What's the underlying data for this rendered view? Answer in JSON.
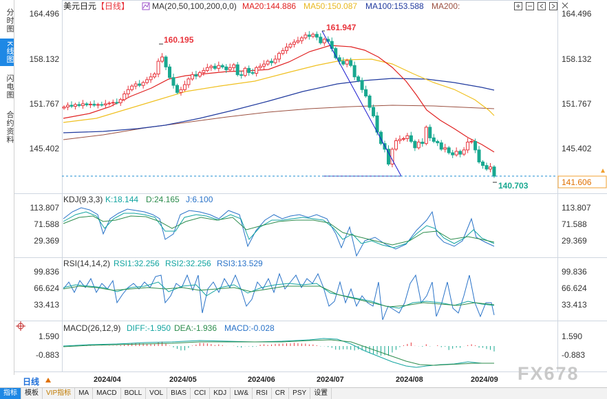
{
  "sidebar": {
    "tabs": [
      "分时图",
      "K线图",
      "闪电图",
      "合约资料"
    ],
    "active": 1
  },
  "header": {
    "symbol": "美元日元",
    "period_tag": "【日线】",
    "ma_label": "MA(20,50,100,200,0,0)",
    "ma20": "MA20:144.886",
    "ma50": "MA50:150.087",
    "ma100": "MA100:153.588",
    "ma200": "MA200:"
  },
  "colors": {
    "up": "#e8343c",
    "down": "#18a890",
    "ma20": "#e02020",
    "ma50": "#f0c020",
    "ma100": "#203a9e",
    "ma200": "#9b5040",
    "k": "#12a4a0",
    "d": "#2c8c4c",
    "j": "#2872c8",
    "axis": "#333333"
  },
  "icons": [
    "plus-icon",
    "minus-icon",
    "fit-left-icon",
    "fit-right-icon",
    "close-icon",
    "settings-icon"
  ],
  "price_axis": {
    "ticks": [
      "164.496",
      "158.132",
      "151.767",
      "145.402"
    ],
    "current": "141.606"
  },
  "annotations": {
    "high": "161.947",
    "local_high": "160.195",
    "low": "140.703"
  },
  "kdj": {
    "label": "KDJ(9,3,3)",
    "k": "K:18.144",
    "d": "D:24.165",
    "j": "J:6.100",
    "ticks": [
      "113.807",
      "71.588",
      "29.369"
    ]
  },
  "rsi": {
    "label": "RSI(14,14,2)",
    "rsi1": "RSI1:32.256",
    "rsi2": "RSI2:32.256",
    "rsi3": "RSI3:13.529",
    "ticks": [
      "99.836",
      "66.624",
      "33.413"
    ]
  },
  "macd": {
    "label": "MACD(26,12,9)",
    "diff": "DIFF:-1.950",
    "dea": "DEA:-1.936",
    "macd": "MACD:-0.028",
    "ticks": [
      "1.590",
      "-0.883"
    ]
  },
  "date_axis": [
    "2024/04",
    "2024/05",
    "2024/06",
    "2024/07",
    "2024/08",
    "2024/09"
  ],
  "period": "日线",
  "bottom_tabs": [
    "指标",
    "模板",
    "VIP指标",
    "MA",
    "MACD",
    "BOLL",
    "VOL",
    "BIAS",
    "CCI",
    "KDJ",
    "LW&",
    "RSI",
    "CR",
    "PSY",
    "设置"
  ],
  "watermark": "FX678",
  "chart_data": {
    "type": "candlestick",
    "title": "美元日元 日线",
    "ylim": [
      139.5,
      165.5
    ],
    "categories": [
      "2024/04",
      "2024/05",
      "2024/06",
      "2024/07",
      "2024/08",
      "2024/09"
    ],
    "close": [
      151.35,
      151.6,
      151.45,
      151.7,
      151.55,
      151.8,
      151.65,
      151.75,
      151.6,
      151.7,
      151.65,
      151.8,
      151.9,
      152.0,
      151.95,
      152.4,
      153.2,
      153.8,
      154.3,
      154.6,
      154.4,
      154.8,
      155.2,
      155.6,
      156.0,
      157.8,
      158.4,
      157.0,
      155.5,
      154.4,
      153.4,
      153.8,
      154.5,
      155.3,
      155.9,
      155.7,
      156.2,
      156.5,
      156.9,
      157.1,
      156.8,
      157.2,
      157.0,
      156.6,
      156.9,
      157.3,
      155.9,
      155.8,
      156.8,
      156.2,
      156.1,
      156.9,
      157.1,
      157.4,
      157.8,
      157.6,
      158.1,
      158.9,
      159.3,
      159.8,
      160.2,
      160.5,
      160.7,
      161.1,
      161.5,
      161.3,
      161.6,
      161.2,
      160.4,
      160.9,
      160.6,
      159.6,
      158.3,
      157.8,
      157.4,
      157.9,
      157.2,
      155.6,
      155.1,
      153.8,
      152.9,
      151.3,
      150.1,
      147.8,
      146.2,
      145.4,
      143.3,
      145.4,
      146.6,
      146.8,
      146.9,
      147.3,
      146.5,
      145.6,
      146.4,
      146.2,
      148.5,
      147.0,
      146.5,
      146.3,
      145.4,
      145.6,
      144.9,
      144.6,
      145.1,
      144.7,
      145.3,
      146.4,
      146.5,
      145.3,
      143.6,
      143.1,
      142.6,
      142.9,
      141.6
    ]
  }
}
